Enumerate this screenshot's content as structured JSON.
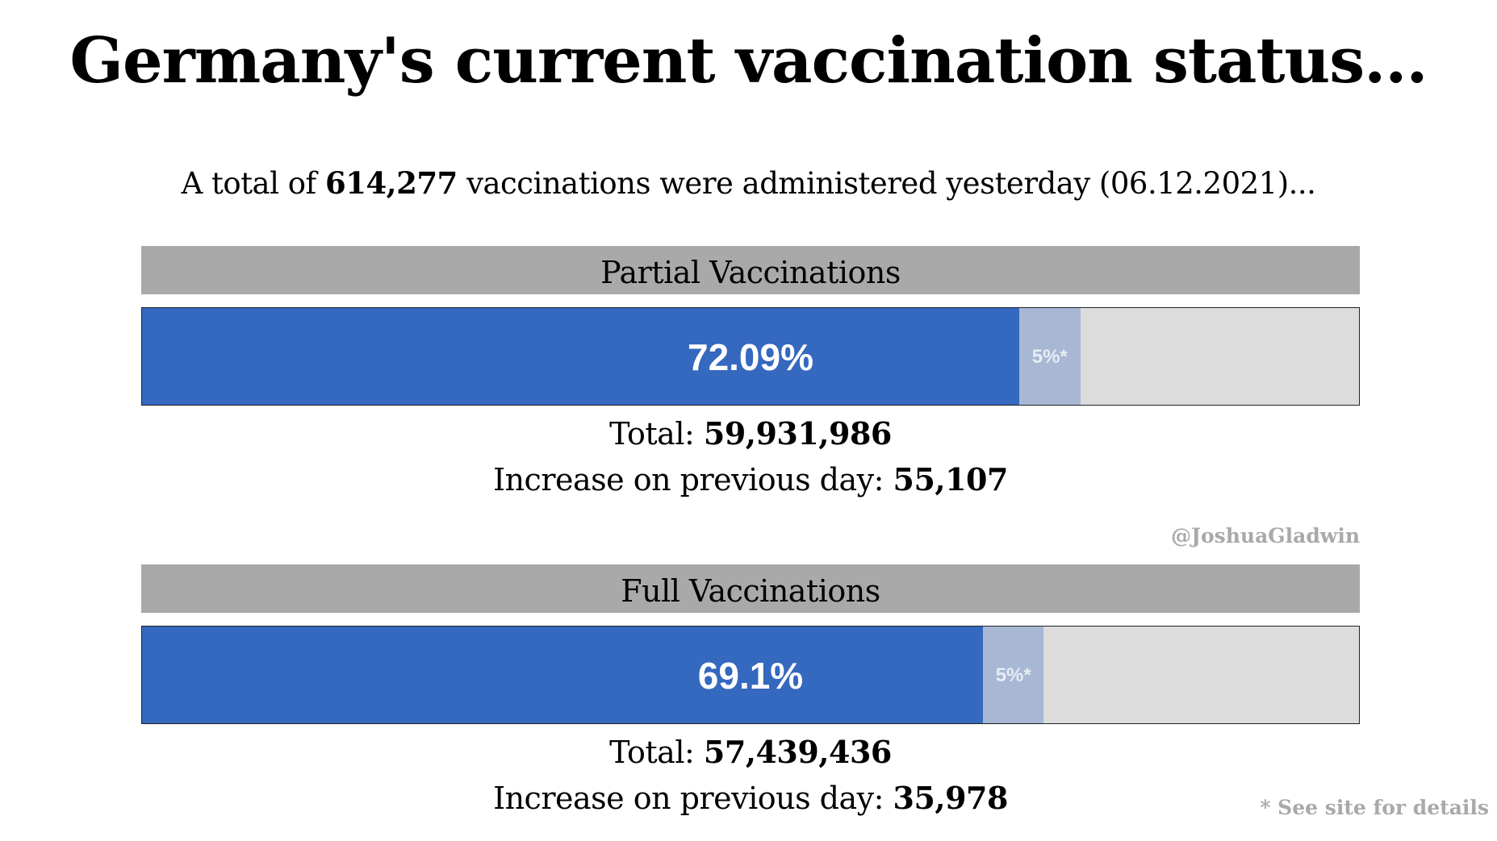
{
  "title": "Germany's current vaccination status...",
  "subtitle": {
    "prefix": "A total of ",
    "total": "614,277",
    "suffix": " vaccinations were administered yesterday (06.12.2021)..."
  },
  "credit": "@JoshuaGladwin",
  "footnote": "* See site for details",
  "colors": {
    "fill": "#3568bf",
    "buffer": "#a7b7d4",
    "remainder": "#dcdcdc",
    "header": "#a9a9a9"
  },
  "chart_data": [
    {
      "type": "bar",
      "title": "Partial Vaccinations",
      "value_percent": 72.09,
      "value_label": "72.09%",
      "buffer_percent": 5,
      "buffer_label": "5%*",
      "xlim": [
        0,
        100
      ],
      "total_label": "Total: ",
      "total": "59,931,986",
      "increase_label": "Increase on previous day: ",
      "increase": "55,107"
    },
    {
      "type": "bar",
      "title": "Full Vaccinations",
      "value_percent": 69.1,
      "value_label": "69.1%",
      "buffer_percent": 5,
      "buffer_label": "5%*",
      "xlim": [
        0,
        100
      ],
      "total_label": "Total: ",
      "total": "57,439,436",
      "increase_label": "Increase on previous day: ",
      "increase": "35,978"
    }
  ]
}
